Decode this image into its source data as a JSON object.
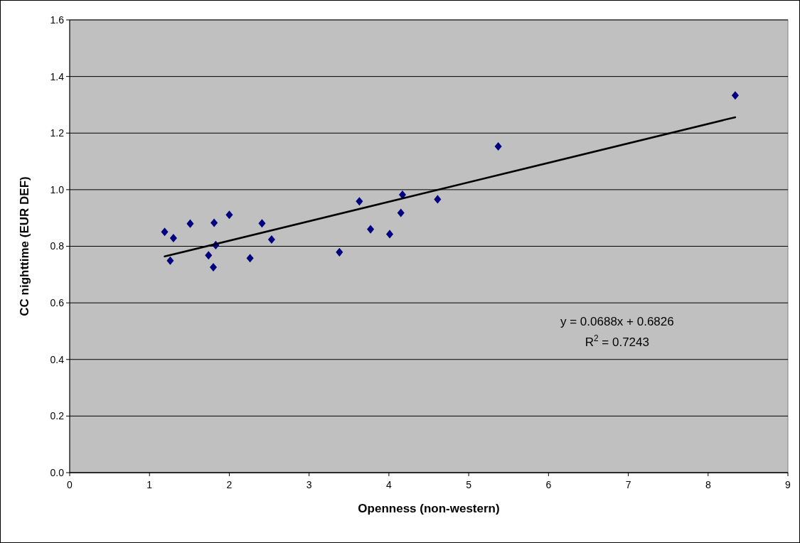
{
  "chart_data": {
    "type": "scatter",
    "xlabel": "Openness (non-western)",
    "ylabel": "CC nighttime (EUR DEF)",
    "xlim": [
      0,
      9
    ],
    "xticks": [
      0,
      1,
      2,
      3,
      4,
      5,
      6,
      7,
      8,
      9
    ],
    "ylim": [
      0,
      1.6
    ],
    "yticks": [
      {
        "value": 0,
        "label": "0.0"
      },
      0.2,
      0.4,
      0.6,
      0.8,
      {
        "value": 1,
        "label": "1.0"
      },
      1.2,
      1.4,
      1.6
    ],
    "grid": "y",
    "series": [
      {
        "marker": "diamond",
        "color": "#000080",
        "x": [
          1.19,
          1.3,
          1.26,
          1.51,
          1.81,
          2.0,
          1.83,
          1.74,
          1.8,
          2.26,
          2.41,
          2.53,
          3.38,
          3.63,
          3.77,
          4.01,
          4.15,
          4.17,
          4.61,
          5.37,
          8.34
        ],
        "values": [
          0.851,
          0.829,
          0.749,
          0.88,
          0.883,
          0.911,
          0.804,
          0.768,
          0.726,
          0.758,
          0.881,
          0.824,
          0.779,
          0.959,
          0.86,
          0.843,
          0.918,
          0.982,
          0.966,
          1.153,
          1.333
        ]
      },
      {
        "type": "line",
        "color": "#000000",
        "line_style": "solid",
        "x": [
          1.19,
          8.34
        ],
        "values": [
          0.764,
          1.256
        ]
      }
    ],
    "annotations": [
      "y = 0.0688x + 0.6826",
      "R$^{2}$ = 0.7243"
    ]
  }
}
